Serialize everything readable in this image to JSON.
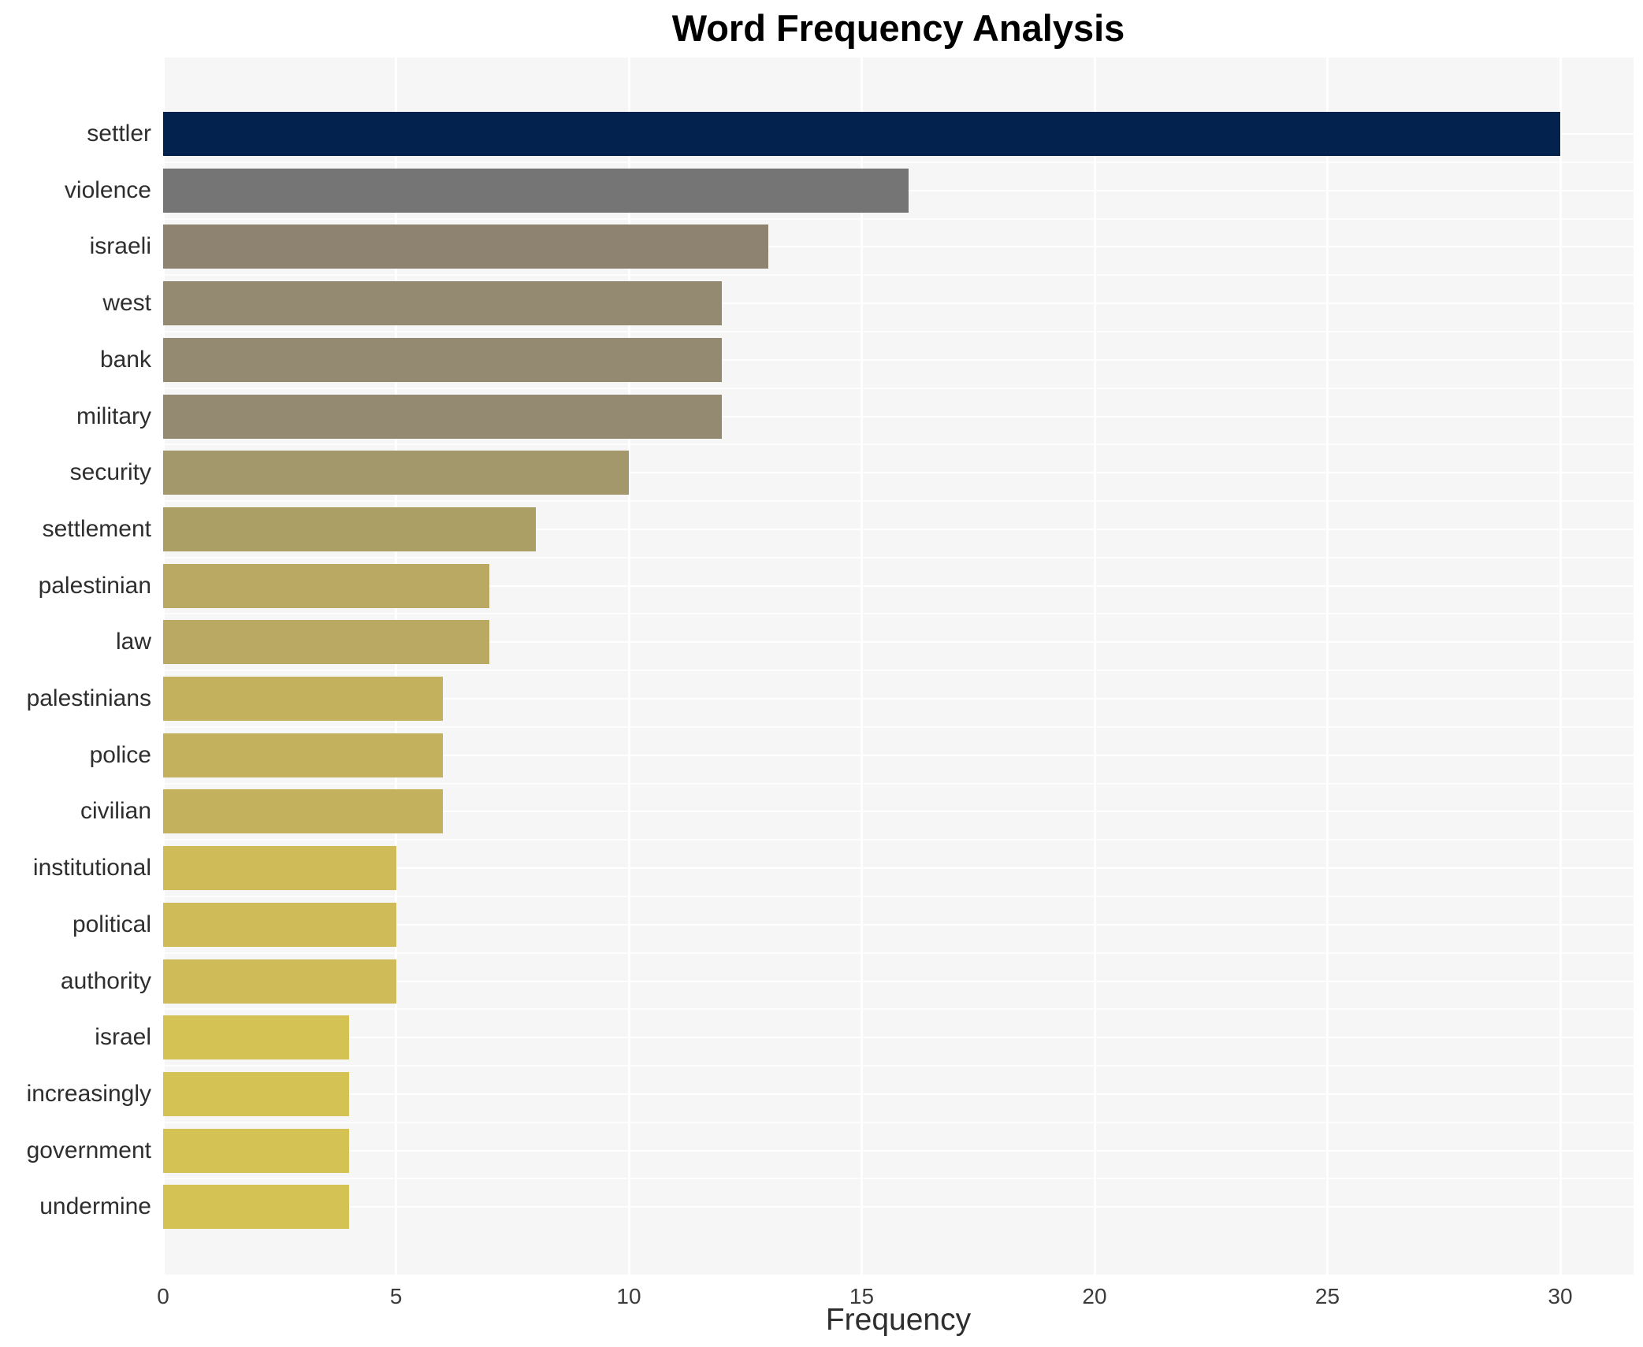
{
  "chart_data": {
    "type": "bar",
    "orientation": "horizontal",
    "title": "Word Frequency Analysis",
    "xlabel": "Frequency",
    "ylabel": "",
    "categories": [
      "settler",
      "violence",
      "israeli",
      "west",
      "bank",
      "military",
      "security",
      "settlement",
      "palestinian",
      "law",
      "palestinians",
      "police",
      "civilian",
      "institutional",
      "political",
      "authority",
      "israel",
      "increasingly",
      "government",
      "undermine"
    ],
    "values": [
      30,
      16,
      13,
      12,
      12,
      12,
      10,
      8,
      7,
      7,
      6,
      6,
      6,
      5,
      5,
      5,
      4,
      4,
      4,
      4
    ],
    "bar_colors": [
      "#03224e",
      "#757575",
      "#8e8370",
      "#948a71",
      "#948a71",
      "#948a71",
      "#a3986c",
      "#ac9f66",
      "#b9a962",
      "#b9a962",
      "#c3b15d",
      "#c3b15d",
      "#c3b15d",
      "#cfbc59",
      "#cfbc59",
      "#cfbc59",
      "#d5c255",
      "#d5c255",
      "#d5c255",
      "#d5c255"
    ],
    "x_ticks": [
      0,
      5,
      10,
      15,
      20,
      25,
      30
    ],
    "xlim": [
      0,
      31.6
    ],
    "grid": "white vertical gridlines at each x tick and faint white horizontal lines between category rows on a light gray panel",
    "legend_position": "none",
    "colors": {
      "page_background": "#ffffff",
      "panel_background": "#f7f6f6",
      "gridline": "#ffffff",
      "title_text": "#000000",
      "axis_text": "#3c3c3c",
      "category_text": "#2e2e2e"
    }
  }
}
